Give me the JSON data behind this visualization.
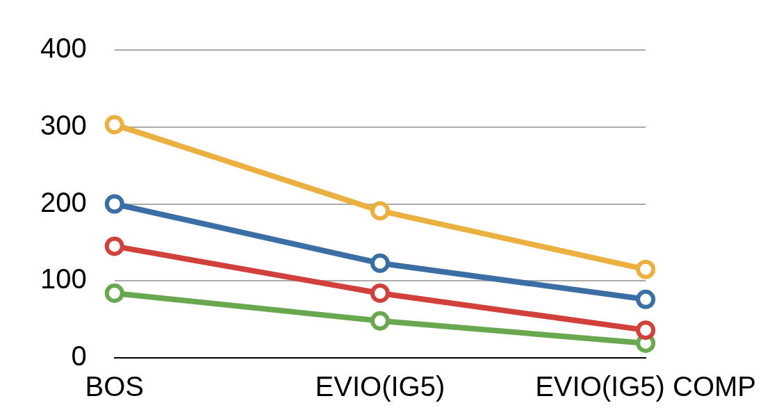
{
  "chart_data": {
    "type": "line",
    "categories": [
      "BOS",
      "EVIO(IG5)",
      "EVIO(IG5) COMP"
    ],
    "series": [
      {
        "color": "#ecb040",
        "values": [
          303,
          191,
          115
        ]
      },
      {
        "color": "#3a6ea5",
        "values": [
          200,
          123,
          76
        ]
      },
      {
        "color": "#d1403a",
        "values": [
          145,
          84,
          36
        ]
      },
      {
        "color": "#6aa84f",
        "values": [
          84,
          48,
          19
        ]
      }
    ],
    "ylim": [
      0,
      400
    ],
    "yticks": [
      0,
      100,
      200,
      300,
      400
    ],
    "grid": "y",
    "marker": "circle",
    "line_style": "solid",
    "legend": false
  }
}
